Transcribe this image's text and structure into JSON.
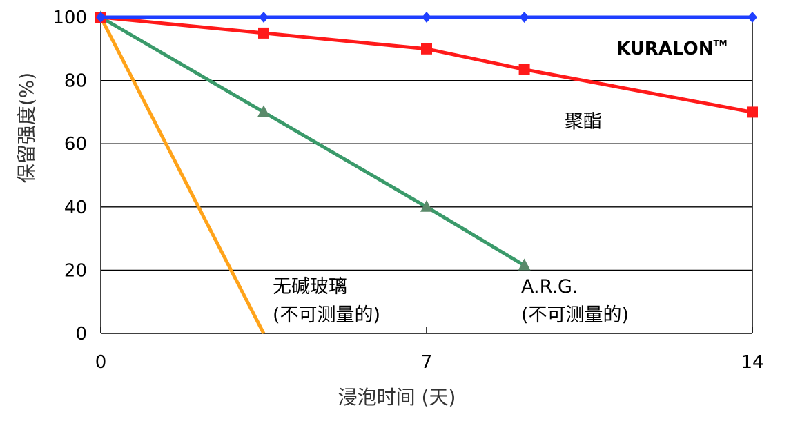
{
  "chart_data": {
    "type": "line",
    "xlabel": "浸泡时间 (天)",
    "ylabel": "保留强度(%)",
    "xlim": [
      0,
      14
    ],
    "ylim": [
      0,
      100
    ],
    "x_ticks": [
      "0",
      "7",
      "14"
    ],
    "y_ticks": [
      "0",
      "20",
      "40",
      "60",
      "80",
      "100"
    ],
    "grid": "horizontal",
    "series": [
      {
        "name": "KURALON™",
        "color": "#1f3fff",
        "marker": "diamond",
        "x": [
          0,
          3.5,
          7,
          9.1,
          14
        ],
        "y": [
          100,
          100,
          100,
          100,
          100
        ]
      },
      {
        "name": "聚酯",
        "color": "#ff1a1a",
        "marker": "square",
        "x": [
          0,
          3.5,
          7,
          9.1,
          14
        ],
        "y": [
          100,
          95,
          90,
          83.5,
          70
        ]
      },
      {
        "name": "A.R.G.",
        "color": "#3a9a6a",
        "marker": "triangle",
        "x": [
          0,
          3.5,
          7,
          9.1
        ],
        "y": [
          100,
          70,
          40,
          21.5
        ]
      },
      {
        "name": "无碱玻璃",
        "color": "#ffa31a",
        "marker": "none",
        "x": [
          0,
          3.5
        ],
        "y": [
          100,
          0
        ]
      }
    ],
    "annotations": {
      "kuralon": "KURALON",
      "tm": "TM",
      "polyester": "聚酯",
      "eglass": "无碱玻璃",
      "eglass_note": "(不可测量的)",
      "arg": "A.R.G.",
      "arg_note": "(不可测量的)"
    }
  }
}
